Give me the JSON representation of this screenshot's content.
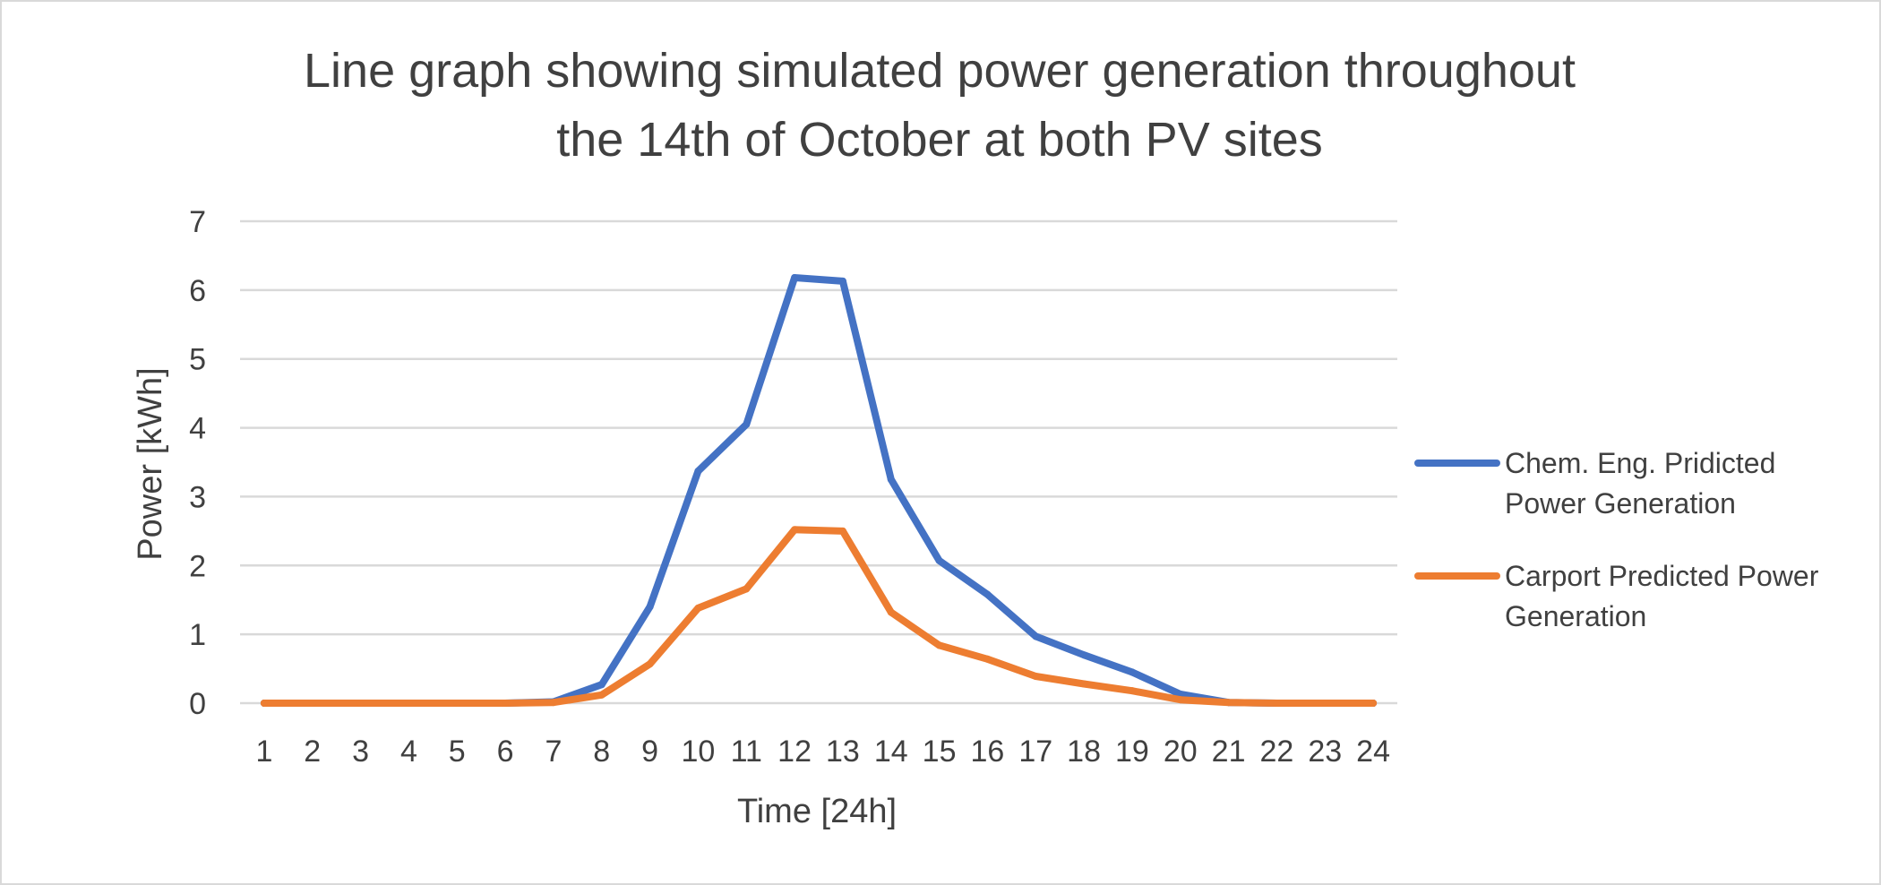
{
  "chart_data": {
    "type": "line",
    "title": "Line graph showing simulated power generation throughout the 14th of October at both PV sites",
    "title_lines": [
      "Line graph showing simulated power generation throughout",
      "the 14th of October at both PV sites"
    ],
    "xlabel": "Time [24h]",
    "ylabel": "Power [kWh]",
    "categories": [
      "1",
      "2",
      "3",
      "4",
      "5",
      "6",
      "7",
      "8",
      "9",
      "10",
      "11",
      "12",
      "13",
      "14",
      "15",
      "16",
      "17",
      "18",
      "19",
      "20",
      "21",
      "22",
      "23",
      "24"
    ],
    "ylim": [
      0,
      7
    ],
    "yticks": [
      "0",
      "1",
      "2",
      "3",
      "4",
      "5",
      "6",
      "7"
    ],
    "grid": true,
    "legend_position": "right",
    "series": [
      {
        "name": "Chem. Eng. Pridicted Power Generation",
        "legend_lines": [
          "Chem. Eng. Pridicted",
          "Power Generation"
        ],
        "color": "#4472C4",
        "values": [
          0,
          0,
          0,
          0,
          0,
          0,
          0.02,
          0.27,
          1.4,
          3.37,
          4.05,
          6.18,
          6.13,
          3.25,
          2.07,
          1.58,
          0.97,
          0.7,
          0.45,
          0.13,
          0.01,
          0,
          0,
          0
        ]
      },
      {
        "name": "Carport Predicted Power Generation",
        "legend_lines": [
          "Carport Predicted Power",
          "Generation"
        ],
        "color": "#ED7D31",
        "values": [
          0,
          0,
          0,
          0,
          0,
          0,
          0.01,
          0.12,
          0.57,
          1.38,
          1.66,
          2.52,
          2.5,
          1.32,
          0.84,
          0.64,
          0.39,
          0.28,
          0.18,
          0.05,
          0.01,
          0,
          0,
          0
        ]
      }
    ]
  }
}
